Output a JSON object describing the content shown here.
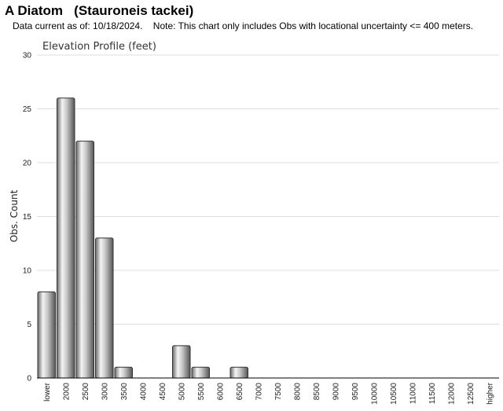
{
  "header": {
    "title": "A Diatom   (Stauroneis tackei)",
    "note": "Data current as of: 10/18/2024.    Note: This chart only includes Obs with locational uncertainty <= 400 meters."
  },
  "chart_data": {
    "type": "bar",
    "title": "Elevation Profile (feet)",
    "xlabel": "",
    "ylabel": "Obs. Count",
    "ylim": [
      0,
      30
    ],
    "yticks": [
      0,
      5,
      10,
      15,
      20,
      25,
      30
    ],
    "grid": true,
    "categories": [
      "lower",
      "2000",
      "2500",
      "3000",
      "3500",
      "4000",
      "4500",
      "5000",
      "5500",
      "6000",
      "6500",
      "7000",
      "7500",
      "8000",
      "8500",
      "9000",
      "9500",
      "10000",
      "10500",
      "11000",
      "11500",
      "12000",
      "12500",
      "higher"
    ],
    "values": [
      8,
      26,
      22,
      13,
      1,
      0,
      0,
      3,
      1,
      0,
      1,
      0,
      0,
      0,
      0,
      0,
      0,
      0,
      0,
      0,
      0,
      0,
      0,
      0
    ],
    "colors": {
      "bar_light": "#f4f4f4",
      "bar_mid": "#b0b0b0",
      "bar_dark": "#5a5a5a",
      "grid": "#dddddd",
      "axis": "#000000"
    }
  }
}
